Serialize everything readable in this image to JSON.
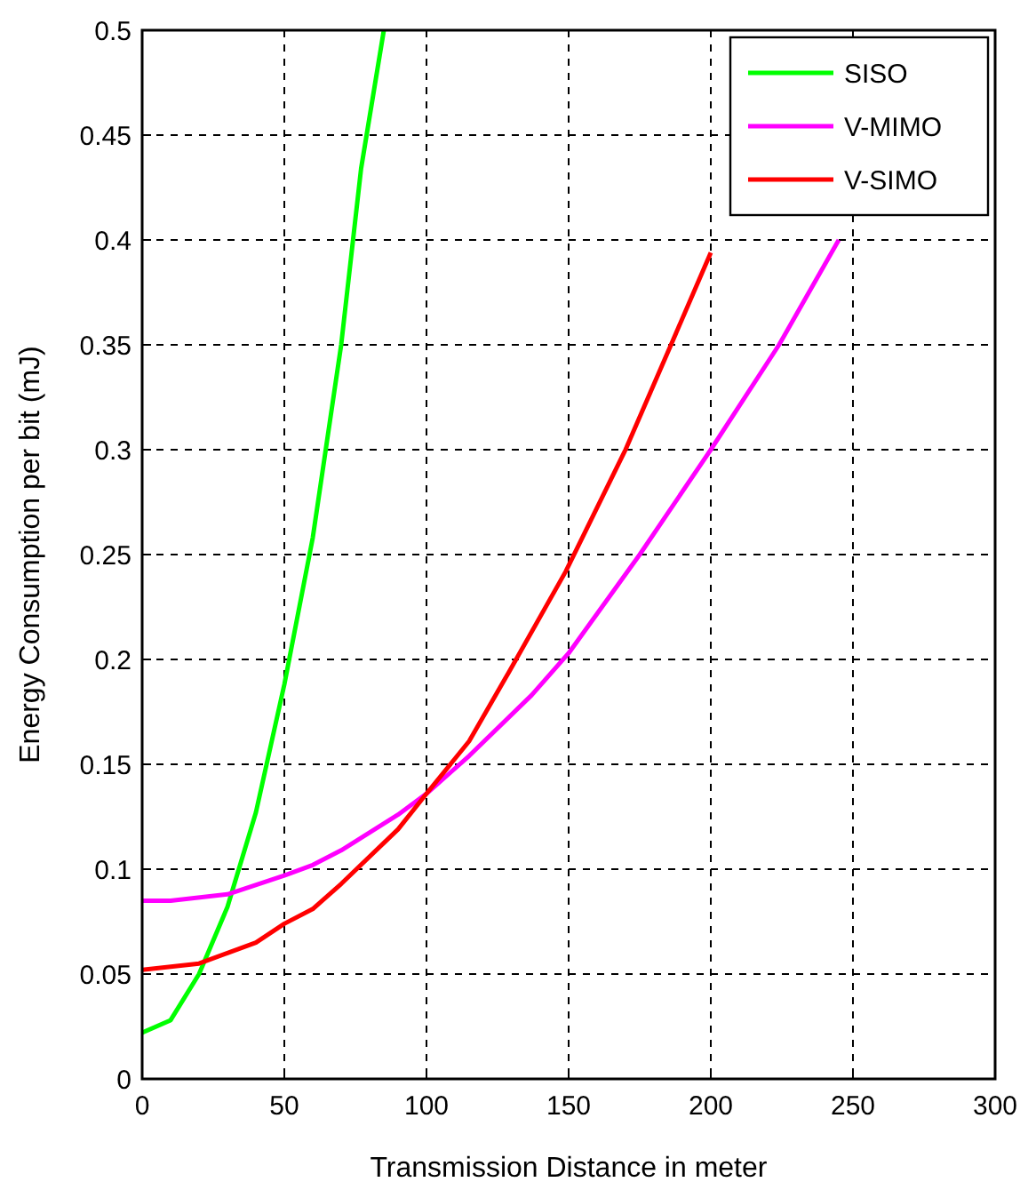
{
  "chart_data": {
    "type": "line",
    "xlabel": "Transmission Distance in meter",
    "ylabel": "Energy Consumption per bit (mJ)",
    "xlim": [
      0,
      300
    ],
    "ylim": [
      0,
      0.5
    ],
    "xticks": [
      0,
      50,
      100,
      150,
      200,
      250,
      300
    ],
    "yticks": [
      0,
      0.05,
      0.1,
      0.15,
      0.2,
      0.25,
      0.3,
      0.35,
      0.4,
      0.45,
      0.5
    ],
    "grid": true,
    "legend": "top right",
    "line_style": "solid",
    "marker": "none",
    "series": [
      {
        "name": "SISO",
        "color": "#00ff00",
        "x": [
          0,
          10,
          20,
          30,
          40,
          50,
          60,
          70,
          77,
          85
        ],
        "values": [
          0.022,
          0.028,
          0.05,
          0.082,
          0.127,
          0.188,
          0.258,
          0.35,
          0.434,
          0.5
        ]
      },
      {
        "name": "V-MIMO",
        "color": "#ff00ff",
        "x": [
          0,
          10,
          30,
          50,
          60,
          70,
          90,
          100,
          115,
          137,
          150,
          175,
          200,
          224,
          245
        ],
        "values": [
          0.085,
          0.085,
          0.088,
          0.097,
          0.102,
          0.109,
          0.126,
          0.136,
          0.154,
          0.183,
          0.203,
          0.25,
          0.3,
          0.35,
          0.4
        ]
      },
      {
        "name": "V-SIMO",
        "color": "#ff0000",
        "x": [
          0,
          20,
          30,
          40,
          50,
          60,
          70,
          90,
          100,
          115,
          129,
          149,
          170,
          186,
          200
        ],
        "values": [
          0.052,
          0.055,
          0.06,
          0.065,
          0.074,
          0.081,
          0.093,
          0.119,
          0.136,
          0.161,
          0.194,
          0.242,
          0.3,
          0.35,
          0.394
        ]
      }
    ]
  }
}
